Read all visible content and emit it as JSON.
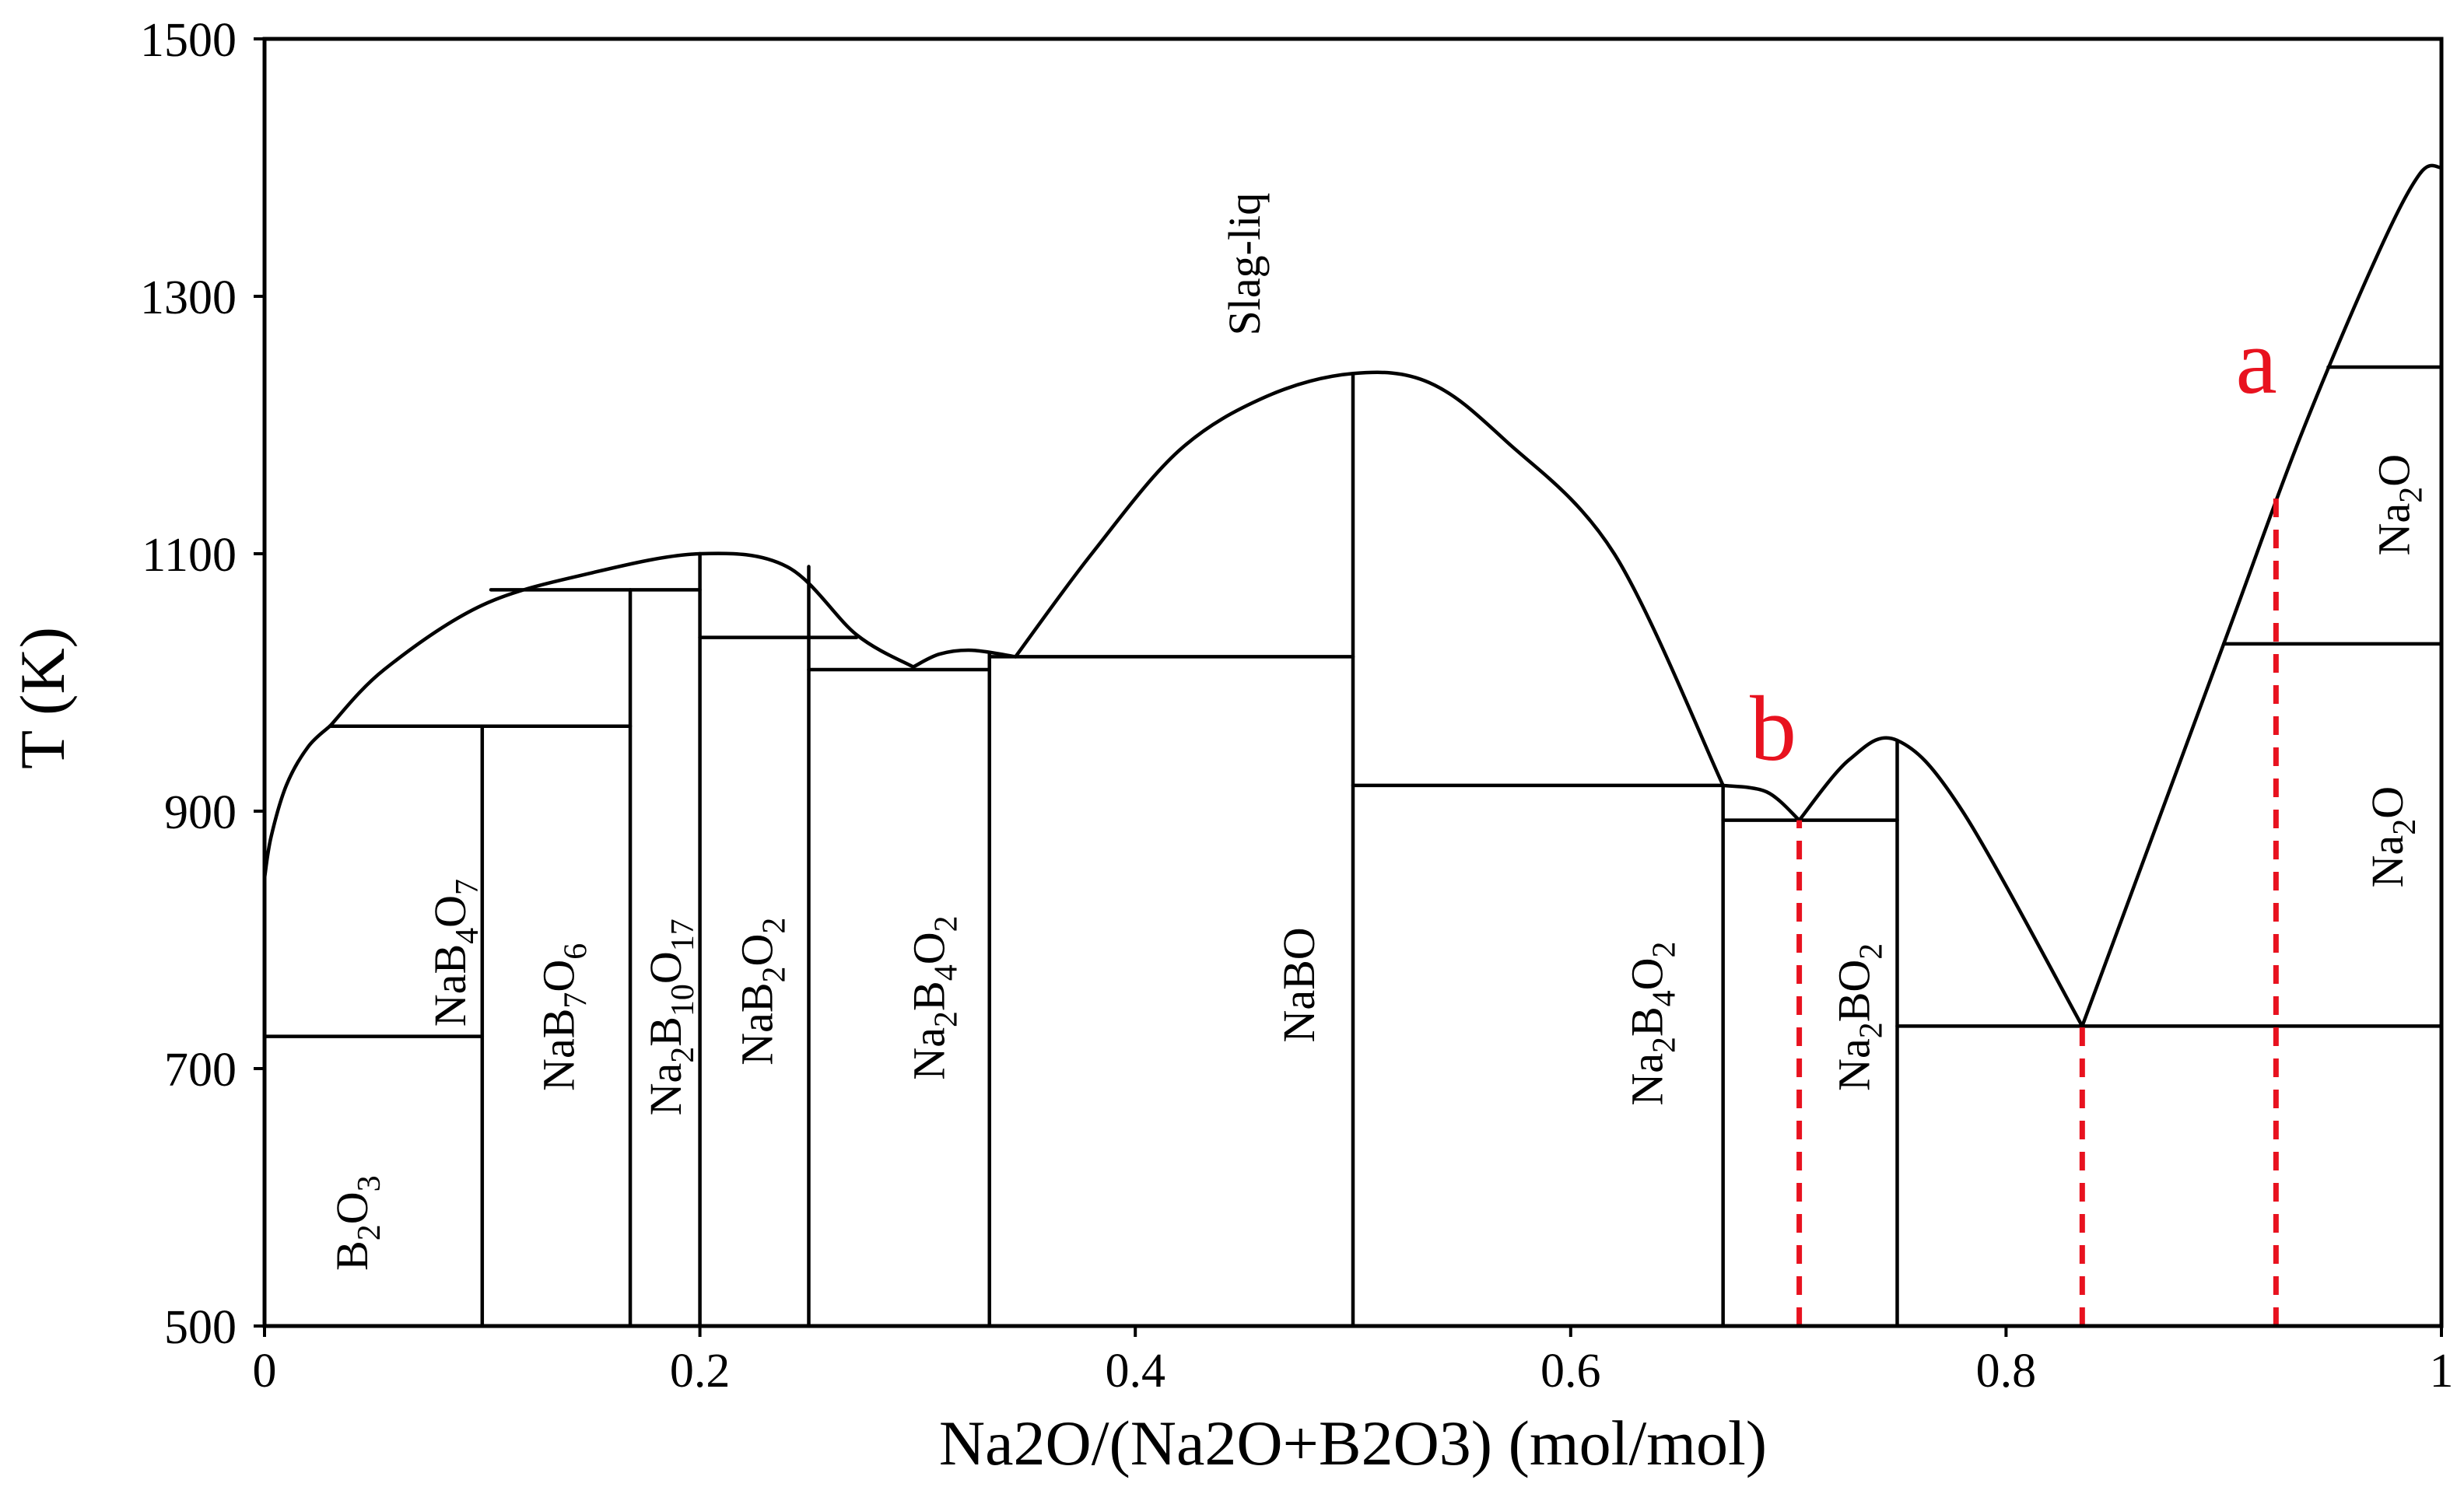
{
  "chart_data": {
    "type": "line",
    "xlabel": "Na2O/(Na2O+B2O3) (mol/mol)",
    "ylabel": "T (K)",
    "xlim": [
      0,
      1
    ],
    "ylim": [
      500,
      1500
    ],
    "x_ticks": [
      {
        "value": 0,
        "label": "0"
      },
      {
        "value": 0.2,
        "label": "0.2"
      },
      {
        "value": 0.4,
        "label": "0.4"
      },
      {
        "value": 0.6,
        "label": "0.6"
      },
      {
        "value": 0.8,
        "label": "0.8"
      },
      {
        "value": 1,
        "label": "1"
      }
    ],
    "y_ticks": [
      {
        "value": 500,
        "label": "500"
      },
      {
        "value": 700,
        "label": "700"
      },
      {
        "value": 900,
        "label": "900"
      },
      {
        "value": 1100,
        "label": "1100"
      },
      {
        "value": 1300,
        "label": "1300"
      },
      {
        "value": 1500,
        "label": "1500"
      }
    ],
    "grid": false,
    "liquidus": [
      [
        [
          0,
          848
        ],
        [
          0.003,
          880
        ],
        [
          0.01,
          920
        ],
        [
          0.02,
          950
        ],
        [
          0.03,
          966
        ]
      ],
      [
        [
          0.03,
          966
        ],
        [
          0.055,
          1010
        ],
        [
          0.1,
          1060
        ],
        [
          0.15,
          1085
        ],
        [
          0.2,
          1100
        ],
        [
          0.24,
          1090
        ],
        [
          0.272,
          1037
        ],
        [
          0.298,
          1012
        ]
      ],
      [
        [
          0.298,
          1012
        ],
        [
          0.31,
          1022
        ],
        [
          0.325,
          1025
        ],
        [
          0.345,
          1020
        ]
      ],
      [
        [
          0.345,
          1020
        ],
        [
          0.38,
          1100
        ],
        [
          0.42,
          1180
        ],
        [
          0.46,
          1222
        ],
        [
          0.5,
          1240
        ],
        [
          0.535,
          1233
        ],
        [
          0.57,
          1188
        ],
        [
          0.62,
          1100
        ],
        [
          0.67,
          920
        ]
      ],
      [
        [
          0.67,
          920
        ],
        [
          0.69,
          915
        ],
        [
          0.705,
          893
        ]
      ],
      [
        [
          0.705,
          893
        ],
        [
          0.728,
          940
        ],
        [
          0.75,
          955
        ],
        [
          0.78,
          900
        ],
        [
          0.835,
          733
        ]
      ],
      [
        [
          0.835,
          733
        ],
        [
          0.9,
          1030
        ],
        [
          0.935,
          1190
        ],
        [
          0.97,
          1330
        ],
        [
          0.99,
          1395
        ],
        [
          1,
          1400
        ]
      ]
    ],
    "solidus_lines": [
      [
        [
          0,
          725
        ],
        [
          0.1,
          725
        ]
      ],
      [
        [
          0.03,
          966
        ],
        [
          0.168,
          966
        ]
      ],
      [
        [
          0.104,
          1072
        ],
        [
          0.2,
          1072
        ]
      ],
      [
        [
          0.2,
          1035
        ],
        [
          0.272,
          1035
        ]
      ],
      [
        [
          0.25,
          1010
        ],
        [
          0.333,
          1010
        ]
      ],
      [
        [
          0.333,
          1020
        ],
        [
          0.5,
          1020
        ]
      ],
      [
        [
          0.5,
          920
        ],
        [
          0.67,
          920
        ]
      ],
      [
        [
          0.67,
          893
        ],
        [
          0.75,
          893
        ]
      ],
      [
        [
          0.75,
          733
        ],
        [
          1,
          733
        ]
      ],
      [
        [
          0.9,
          1030
        ],
        [
          1,
          1030
        ]
      ],
      [
        [
          0.948,
          1245
        ],
        [
          1,
          1245
        ]
      ]
    ],
    "compound_lines": [
      [
        [
          0.1,
          500
        ],
        [
          0.1,
          966
        ]
      ],
      [
        [
          0.168,
          500
        ],
        [
          0.168,
          1072
        ]
      ],
      [
        [
          0.2,
          500
        ],
        [
          0.2,
          1100
        ]
      ],
      [
        [
          0.25,
          500
        ],
        [
          0.25,
          1090
        ]
      ],
      [
        [
          0.333,
          500
        ],
        [
          0.333,
          1022
        ]
      ],
      [
        [
          0.5,
          500
        ],
        [
          0.5,
          1240
        ]
      ],
      [
        [
          0.67,
          500
        ],
        [
          0.67,
          920
        ]
      ],
      [
        [
          0.75,
          500
        ],
        [
          0.75,
          955
        ]
      ]
    ],
    "regions": [
      {
        "sym": [
          [
            "B",
            ""
          ],
          [
            "2",
            "sub"
          ],
          [
            "O",
            ""
          ],
          [
            "3",
            "sub"
          ]
        ],
        "x": 0.04,
        "y": 580
      },
      {
        "sym": [
          [
            "NaB",
            ""
          ],
          [
            "4",
            "sub"
          ],
          [
            "O",
            ""
          ],
          [
            "7",
            "sub"
          ]
        ],
        "x": 0.085,
        "y": 790
      },
      {
        "sym": [
          [
            "NaB",
            ""
          ],
          [
            "7",
            "sub"
          ],
          [
            "O",
            ""
          ],
          [
            "6",
            "sub"
          ]
        ],
        "x": 0.135,
        "y": 740
      },
      {
        "sym": [
          [
            "Na",
            ""
          ],
          [
            "2",
            "sub"
          ],
          [
            "B",
            ""
          ],
          [
            "10",
            "sub"
          ],
          [
            "O",
            ""
          ],
          [
            "17",
            "sub"
          ]
        ],
        "x": 0.184,
        "y": 740
      },
      {
        "sym": [
          [
            "NaB",
            ""
          ],
          [
            "2",
            "sub"
          ],
          [
            "O",
            ""
          ],
          [
            "2",
            "sub"
          ]
        ],
        "x": 0.226,
        "y": 760
      },
      {
        "sym": [
          [
            "Na",
            ""
          ],
          [
            "2",
            "sub"
          ],
          [
            "B",
            ""
          ],
          [
            "4",
            "sub"
          ],
          [
            "O",
            ""
          ],
          [
            "2",
            "sub"
          ]
        ],
        "x": 0.305,
        "y": 755
      },
      {
        "sym": [
          [
            "NaBO",
            ""
          ]
        ],
        "x": 0.475,
        "y": 765
      },
      {
        "sym": [
          [
            "Slag-liq",
            ""
          ]
        ],
        "x": 0.45,
        "y": 1325
      },
      {
        "sym": [
          [
            "Na",
            ""
          ],
          [
            "2",
            "sub"
          ],
          [
            "B",
            ""
          ],
          [
            "4",
            "sub"
          ],
          [
            "O",
            ""
          ],
          [
            "2",
            "sub"
          ]
        ],
        "x": 0.635,
        "y": 735
      },
      {
        "sym": [
          [
            "Na",
            ""
          ],
          [
            "2",
            "sub"
          ],
          [
            "BO",
            ""
          ],
          [
            "2",
            "sub"
          ]
        ],
        "x": 0.73,
        "y": 740
      },
      {
        "sym": [
          [
            "Na",
            ""
          ],
          [
            "2",
            "sub"
          ],
          [
            "O",
            ""
          ]
        ],
        "x": 0.978,
        "y": 1138
      },
      {
        "sym": [
          [
            "Na",
            ""
          ],
          [
            "2",
            "sub"
          ],
          [
            "O",
            ""
          ]
        ],
        "x": 0.975,
        "y": 880
      }
    ],
    "annotations": [
      {
        "text": "a",
        "x": 0.915,
        "y": 1225,
        "color": "#e8121f"
      },
      {
        "text": "b",
        "x": 0.693,
        "y": 940,
        "color": "#e8121f"
      }
    ],
    "dashed_lines": [
      {
        "x": 0.705,
        "y1": 500,
        "y2": 893,
        "color": "#e8121f"
      },
      {
        "x": 0.835,
        "y1": 500,
        "y2": 733,
        "color": "#e8121f"
      },
      {
        "x": 0.924,
        "y1": 500,
        "y2": 1150,
        "color": "#e8121f"
      }
    ],
    "axis_color": "#000000",
    "line_color": "#000000"
  }
}
